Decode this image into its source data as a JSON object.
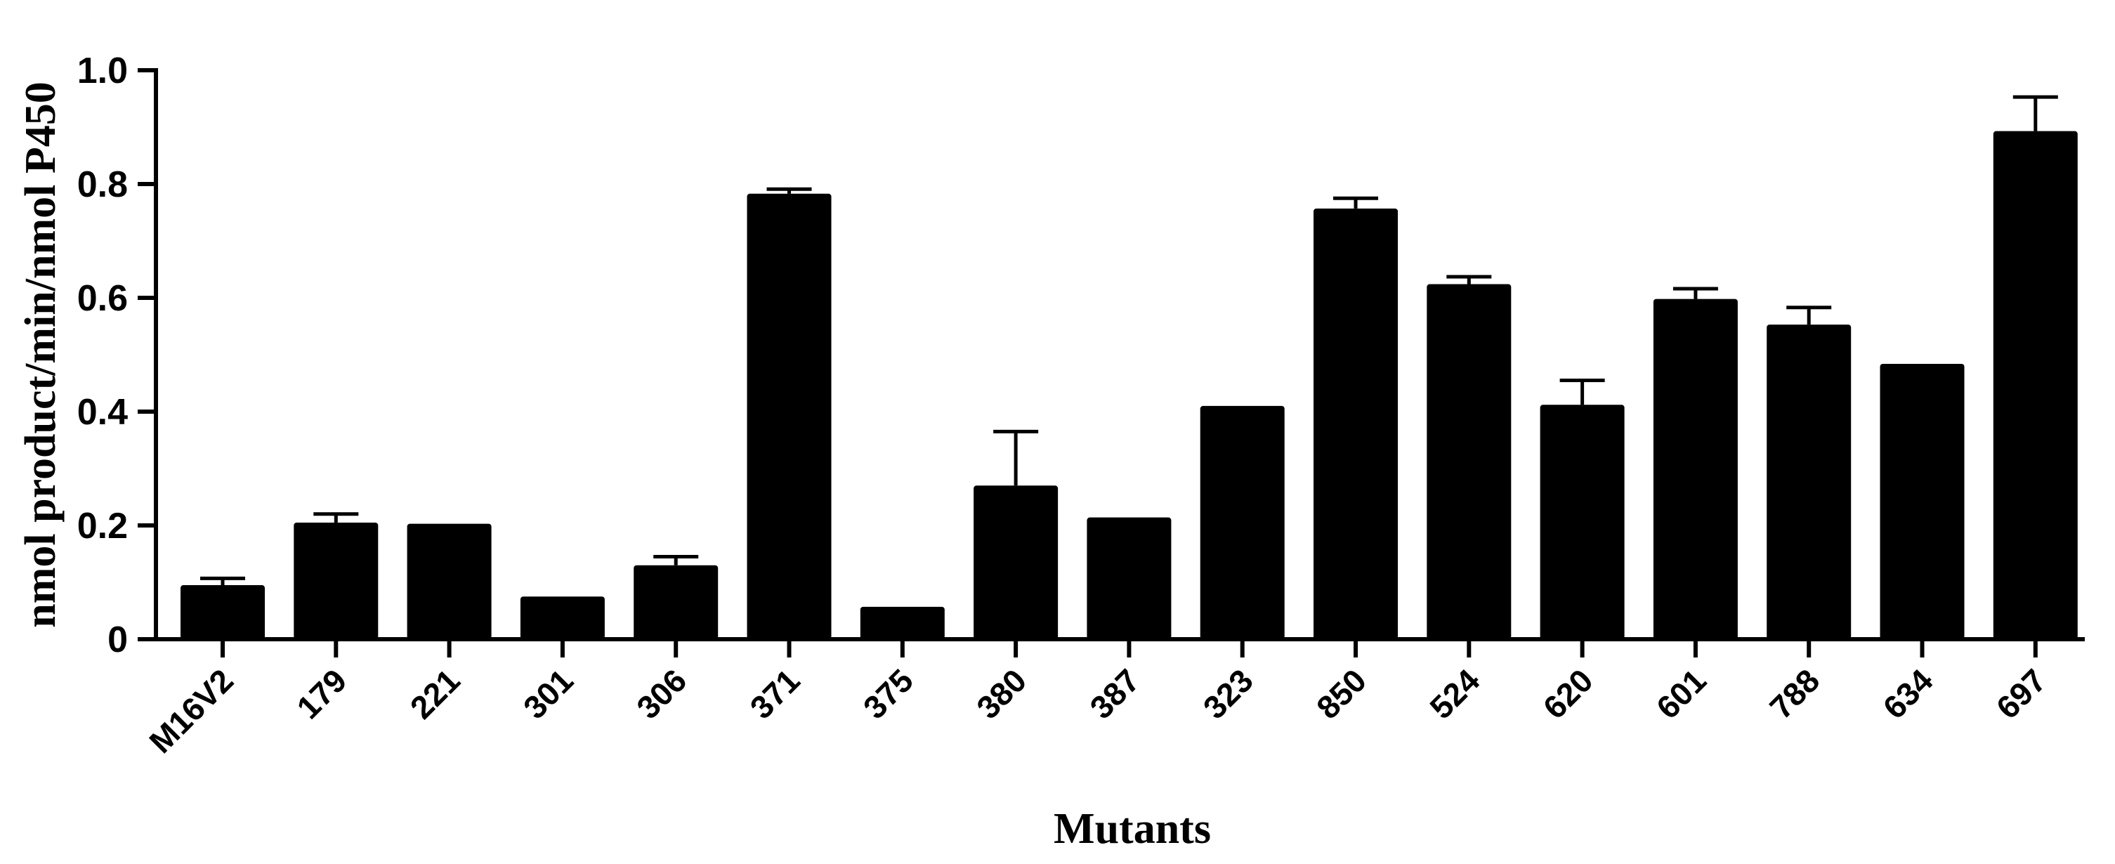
{
  "chart_data": {
    "type": "bar",
    "title": "",
    "xlabel": "Mutants",
    "ylabel": "nmol product/min/nmol P450",
    "categories": [
      "M16V2",
      "179",
      "221",
      "301",
      "306",
      "371",
      "375",
      "380",
      "387",
      "323",
      "850",
      "524",
      "620",
      "601",
      "788",
      "634",
      "697"
    ],
    "values": [
      0.095,
      0.205,
      0.203,
      0.075,
      0.13,
      0.783,
      0.057,
      0.27,
      0.214,
      0.41,
      0.757,
      0.624,
      0.412,
      0.598,
      0.553,
      0.484,
      0.893
    ],
    "errors": [
      0.012,
      0.015,
      0.002,
      0.002,
      0.015,
      0.008,
      0.002,
      0.095,
      0.002,
      0.002,
      0.018,
      0.013,
      0.043,
      0.018,
      0.03,
      0.002,
      0.06
    ],
    "ylim": [
      0,
      1.0
    ],
    "yticks": [
      0,
      0.2,
      0.4,
      0.6,
      0.8,
      1.0
    ],
    "ytick_labels": [
      "0",
      "0.2",
      "0.4",
      "0.6",
      "0.8",
      "1.0"
    ],
    "bar_color": "#000000",
    "grid": false,
    "legend": "none"
  }
}
